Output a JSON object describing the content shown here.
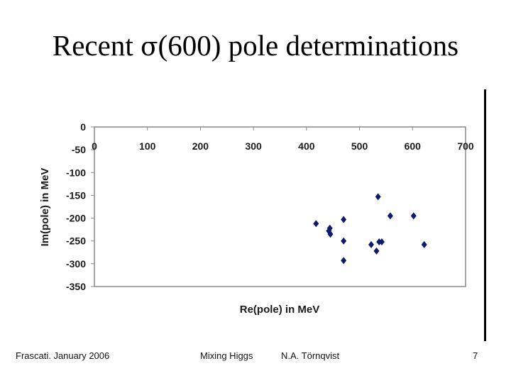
{
  "slide": {
    "title_prefix": "Recent ",
    "title_symbol": "σ",
    "title_suffix": "(600) pole determinations"
  },
  "footer": {
    "left": "Frascati.  January 2006",
    "center_left": "Mixing Higgs",
    "center_right": "N.A. Törnqvist",
    "page_number": "7"
  },
  "chart_data": {
    "type": "scatter",
    "title": "",
    "xlabel": "Re(pole) in MeV",
    "ylabel": "Im(pole) in MeV",
    "xlim": [
      0,
      700
    ],
    "ylim": [
      -350,
      0
    ],
    "x_ticks": [
      "0",
      "100",
      "200",
      "300",
      "400",
      "500",
      "600",
      "700"
    ],
    "y_ticks": [
      "0",
      "-50",
      "-100",
      "-150",
      "-200",
      "-250",
      "-300",
      "-350"
    ],
    "marker_color": "#0d1a6e",
    "grid": false,
    "points": [
      {
        "x": 418,
        "y": -212
      },
      {
        "x": 442,
        "y": -228
      },
      {
        "x": 444,
        "y": -222
      },
      {
        "x": 445,
        "y": -235
      },
      {
        "x": 470,
        "y": -203
      },
      {
        "x": 470,
        "y": -250
      },
      {
        "x": 470,
        "y": -293
      },
      {
        "x": 522,
        "y": -258
      },
      {
        "x": 532,
        "y": -272
      },
      {
        "x": 535,
        "y": -153
      },
      {
        "x": 537,
        "y": -252
      },
      {
        "x": 542,
        "y": -252
      },
      {
        "x": 558,
        "y": -195
      },
      {
        "x": 602,
        "y": -195
      },
      {
        "x": 622,
        "y": -258
      }
    ]
  }
}
